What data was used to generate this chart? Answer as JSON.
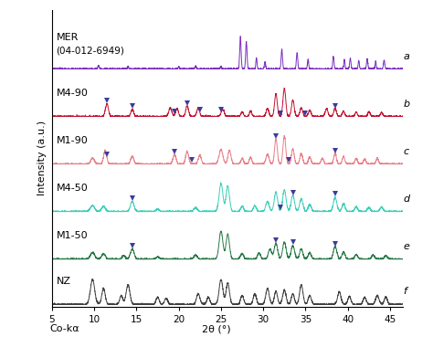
{
  "title": "",
  "xlabel_bottom": "2θ (°)",
  "xlabel_left": "Co-kα",
  "ylabel": "Intensity (a.u.)",
  "xlim": [
    5,
    46.5
  ],
  "ylim": [
    -0.05,
    6.5
  ],
  "xticks": [
    5,
    10,
    15,
    20,
    25,
    30,
    35,
    40,
    45
  ],
  "background_color": "#ffffff",
  "series_order": [
    "a",
    "b",
    "c",
    "d",
    "e",
    "f"
  ],
  "offsets": {
    "a": 5.2,
    "b": 4.15,
    "c": 3.1,
    "d": 2.05,
    "e": 1.0,
    "f": 0.0
  },
  "band_height": 0.85,
  "colors": {
    "a": "#7B2FBE",
    "b": "#C41230",
    "c": "#E8808A",
    "d": "#3ECFB8",
    "e": "#2A7A4A",
    "f": "#404040"
  },
  "names": {
    "a": [
      "MER",
      "(04-012-6949)"
    ],
    "b": [
      "M4-90"
    ],
    "c": [
      "M1-90"
    ],
    "d": [
      "M4-50"
    ],
    "e": [
      "M1-50"
    ],
    "f": [
      "NZ"
    ]
  },
  "markers": {
    "b": [
      11.5,
      14.5,
      19.5,
      21.0,
      22.5,
      25.0,
      32.0,
      35.0,
      38.5
    ],
    "c": [
      11.5,
      19.5,
      21.5,
      31.5,
      33.0,
      38.5
    ],
    "d": [
      14.5,
      32.0,
      33.5,
      38.5
    ],
    "e": [
      14.5,
      31.5,
      33.5,
      38.5
    ]
  },
  "marker_color": "#3B3B9E",
  "label_fontsize": 8,
  "name_fontsize": 8,
  "tick_fontsize": 7.5,
  "linewidth": 0.7
}
